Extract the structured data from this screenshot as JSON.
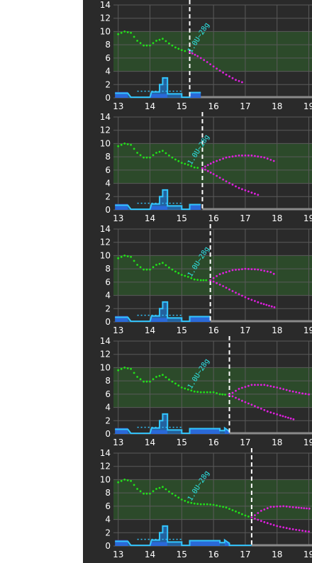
{
  "colors": {
    "background": "#2a2a2a",
    "target_band": "#2c4a2a",
    "grid": "#5a5a5a",
    "bg_points": "#22e01a",
    "prediction": "#e020e0",
    "now_line": "#ffffff",
    "iob_fill": "#1e90ff",
    "iob_outline": "#33c6ff",
    "basal_bar": "#3a3aa8",
    "carb_label": "#2ee8e8",
    "baseline": "#8a8a8a"
  },
  "chart_data": [
    {
      "type": "scatter",
      "title": "",
      "xlabel": "",
      "ylabel": "",
      "xlim": [
        12.85,
        19.1
      ],
      "ylim": [
        0,
        14
      ],
      "x_ticks": [
        "13",
        "14",
        "15",
        "16",
        "17",
        "18",
        "19"
      ],
      "y_ticks": [
        "0",
        "2",
        "4",
        "6",
        "8",
        "10",
        "12",
        "14"
      ],
      "target_range": [
        4,
        10
      ],
      "now": 15.25,
      "annotation": {
        "text": "1.0U~28g",
        "x": 15.3,
        "y": 6.7
      },
      "bg": [
        [
          13.0,
          9.6
        ],
        [
          13.2,
          10.0
        ],
        [
          13.4,
          9.8
        ],
        [
          13.6,
          8.6
        ],
        [
          13.8,
          7.9
        ],
        [
          14.0,
          7.9
        ],
        [
          14.2,
          8.6
        ],
        [
          14.4,
          8.9
        ],
        [
          14.6,
          8.2
        ],
        [
          14.8,
          7.6
        ],
        [
          15.0,
          7.2
        ],
        [
          15.2,
          6.9
        ]
      ],
      "predictions": [
        [
          [
            15.25,
            6.9
          ],
          [
            15.5,
            6.3
          ],
          [
            15.8,
            5.4
          ],
          [
            16.1,
            4.4
          ],
          [
            16.4,
            3.5
          ],
          [
            16.7,
            2.7
          ],
          [
            17.0,
            2.2
          ]
        ]
      ],
      "iob": [
        [
          12.9,
          0.7
        ],
        [
          13.0,
          0.7
        ],
        [
          13.3,
          0.7
        ],
        [
          13.4,
          0.1
        ],
        [
          14.0,
          0.1
        ],
        [
          14.05,
          0.9
        ],
        [
          14.3,
          0.9
        ],
        [
          14.3,
          2.0
        ],
        [
          14.4,
          2.0
        ],
        [
          14.4,
          3.0
        ],
        [
          14.55,
          3.0
        ],
        [
          14.55,
          0.6
        ],
        [
          15.0,
          0.6
        ],
        [
          15.0,
          0.1
        ],
        [
          15.25,
          0.1
        ],
        [
          15.25,
          0.8
        ],
        [
          15.6,
          0.8
        ]
      ],
      "basal": [
        [
          12.9,
          13.3,
          0.9
        ],
        [
          14.0,
          14.55,
          0.6
        ],
        [
          15.25,
          15.6,
          0.8
        ]
      ],
      "baseline_end": 19.1
    },
    {
      "type": "scatter",
      "title": "",
      "xlabel": "",
      "ylabel": "",
      "xlim": [
        12.85,
        19.1
      ],
      "ylim": [
        0,
        14
      ],
      "x_ticks": [
        "13",
        "14",
        "15",
        "16",
        "17",
        "18",
        "19"
      ],
      "y_ticks": [
        "0",
        "2",
        "4",
        "6",
        "8",
        "10",
        "12",
        "14"
      ],
      "target_range": [
        4,
        10
      ],
      "now": 15.65,
      "annotation": {
        "text": "1.0U~28g",
        "x": 15.3,
        "y": 6.7
      },
      "bg": [
        [
          13.0,
          9.6
        ],
        [
          13.2,
          10.0
        ],
        [
          13.4,
          9.8
        ],
        [
          13.6,
          8.6
        ],
        [
          13.8,
          7.9
        ],
        [
          14.0,
          7.9
        ],
        [
          14.2,
          8.6
        ],
        [
          14.4,
          8.9
        ],
        [
          14.6,
          8.2
        ],
        [
          14.8,
          7.6
        ],
        [
          15.0,
          7.1
        ],
        [
          15.2,
          6.8
        ],
        [
          15.4,
          6.4
        ],
        [
          15.6,
          6.3
        ]
      ],
      "predictions": [
        [
          [
            15.65,
            6.3
          ],
          [
            16.0,
            7.2
          ],
          [
            16.4,
            7.9
          ],
          [
            16.8,
            8.2
          ],
          [
            17.2,
            8.2
          ],
          [
            17.6,
            7.9
          ],
          [
            18.0,
            7.2
          ]
        ],
        [
          [
            15.65,
            6.3
          ],
          [
            16.0,
            5.4
          ],
          [
            16.4,
            4.3
          ],
          [
            16.8,
            3.3
          ],
          [
            17.2,
            2.6
          ],
          [
            17.5,
            2.1
          ]
        ]
      ],
      "iob": [
        [
          12.9,
          0.7
        ],
        [
          13.0,
          0.7
        ],
        [
          13.3,
          0.7
        ],
        [
          13.4,
          0.1
        ],
        [
          14.0,
          0.1
        ],
        [
          14.05,
          0.9
        ],
        [
          14.3,
          0.9
        ],
        [
          14.3,
          2.0
        ],
        [
          14.4,
          2.0
        ],
        [
          14.4,
          3.0
        ],
        [
          14.55,
          3.0
        ],
        [
          14.55,
          0.6
        ],
        [
          15.0,
          0.6
        ],
        [
          15.0,
          0.1
        ],
        [
          15.25,
          0.1
        ],
        [
          15.25,
          0.8
        ],
        [
          15.6,
          0.8
        ]
      ],
      "basal": [
        [
          12.9,
          13.3,
          0.9
        ],
        [
          14.0,
          14.55,
          0.6
        ],
        [
          15.25,
          15.6,
          0.8
        ]
      ],
      "baseline_end": 19.1
    },
    {
      "type": "scatter",
      "title": "",
      "xlabel": "",
      "ylabel": "",
      "xlim": [
        12.85,
        19.1
      ],
      "ylim": [
        0,
        14
      ],
      "x_ticks": [
        "13",
        "14",
        "15",
        "16",
        "17",
        "18",
        "19"
      ],
      "y_ticks": [
        "0",
        "2",
        "4",
        "6",
        "8",
        "10",
        "12",
        "14"
      ],
      "target_range": [
        4,
        10
      ],
      "now": 15.9,
      "annotation": {
        "text": "1.0U~28g",
        "x": 15.3,
        "y": 6.7
      },
      "bg": [
        [
          13.0,
          9.6
        ],
        [
          13.2,
          10.0
        ],
        [
          13.4,
          9.8
        ],
        [
          13.6,
          8.6
        ],
        [
          13.8,
          7.9
        ],
        [
          14.0,
          7.9
        ],
        [
          14.2,
          8.6
        ],
        [
          14.4,
          8.9
        ],
        [
          14.6,
          8.2
        ],
        [
          14.8,
          7.6
        ],
        [
          15.0,
          7.1
        ],
        [
          15.2,
          6.8
        ],
        [
          15.4,
          6.4
        ],
        [
          15.6,
          6.3
        ],
        [
          15.85,
          6.3
        ]
      ],
      "predictions": [
        [
          [
            15.9,
            6.3
          ],
          [
            16.2,
            7.2
          ],
          [
            16.6,
            7.8
          ],
          [
            17.0,
            8.0
          ],
          [
            17.4,
            7.9
          ],
          [
            17.8,
            7.5
          ],
          [
            18.0,
            7.0
          ]
        ],
        [
          [
            15.9,
            6.3
          ],
          [
            16.3,
            5.4
          ],
          [
            16.7,
            4.4
          ],
          [
            17.1,
            3.5
          ],
          [
            17.5,
            2.8
          ],
          [
            18.0,
            2.1
          ]
        ]
      ],
      "iob": [
        [
          12.9,
          0.7
        ],
        [
          13.0,
          0.7
        ],
        [
          13.3,
          0.7
        ],
        [
          13.4,
          0.1
        ],
        [
          14.0,
          0.1
        ],
        [
          14.05,
          0.9
        ],
        [
          14.3,
          0.9
        ],
        [
          14.3,
          2.0
        ],
        [
          14.4,
          2.0
        ],
        [
          14.4,
          3.0
        ],
        [
          14.55,
          3.0
        ],
        [
          14.55,
          0.6
        ],
        [
          15.0,
          0.6
        ],
        [
          15.0,
          0.1
        ],
        [
          15.25,
          0.1
        ],
        [
          15.25,
          0.8
        ],
        [
          15.9,
          0.8
        ]
      ],
      "basal": [
        [
          12.9,
          13.3,
          0.9
        ],
        [
          14.0,
          14.55,
          0.6
        ],
        [
          15.25,
          15.9,
          0.8
        ]
      ],
      "baseline_end": 19.1
    },
    {
      "type": "scatter",
      "title": "",
      "xlabel": "",
      "ylabel": "",
      "xlim": [
        12.85,
        19.1
      ],
      "ylim": [
        0,
        14
      ],
      "x_ticks": [
        "13",
        "14",
        "15",
        "16",
        "17",
        "18",
        "19"
      ],
      "y_ticks": [
        "0",
        "2",
        "4",
        "6",
        "8",
        "10",
        "12",
        "14"
      ],
      "target_range": [
        4,
        10
      ],
      "now": 16.5,
      "annotation": {
        "text": "1.0U~28g",
        "x": 15.3,
        "y": 6.7
      },
      "bg": [
        [
          13.0,
          9.6
        ],
        [
          13.2,
          10.0
        ],
        [
          13.4,
          9.8
        ],
        [
          13.6,
          8.6
        ],
        [
          13.8,
          7.9
        ],
        [
          14.0,
          7.9
        ],
        [
          14.2,
          8.6
        ],
        [
          14.4,
          8.9
        ],
        [
          14.6,
          8.2
        ],
        [
          14.8,
          7.6
        ],
        [
          15.0,
          7.0
        ],
        [
          15.2,
          6.7
        ],
        [
          15.4,
          6.4
        ],
        [
          15.6,
          6.3
        ],
        [
          15.8,
          6.3
        ],
        [
          16.0,
          6.3
        ],
        [
          16.2,
          6.0
        ],
        [
          16.45,
          5.9
        ]
      ],
      "predictions": [
        [
          [
            16.5,
            5.9
          ],
          [
            16.8,
            6.8
          ],
          [
            17.2,
            7.4
          ],
          [
            17.6,
            7.4
          ],
          [
            18.0,
            7.0
          ],
          [
            18.4,
            6.5
          ],
          [
            18.8,
            6.1
          ],
          [
            19.1,
            5.9
          ]
        ],
        [
          [
            16.5,
            5.9
          ],
          [
            16.9,
            5.0
          ],
          [
            17.3,
            4.2
          ],
          [
            17.7,
            3.4
          ],
          [
            18.1,
            2.8
          ],
          [
            18.6,
            2.1
          ]
        ]
      ],
      "iob": [
        [
          12.9,
          0.7
        ],
        [
          13.0,
          0.7
        ],
        [
          13.3,
          0.7
        ],
        [
          13.4,
          0.1
        ],
        [
          14.0,
          0.1
        ],
        [
          14.05,
          0.9
        ],
        [
          14.3,
          0.9
        ],
        [
          14.3,
          2.0
        ],
        [
          14.4,
          2.0
        ],
        [
          14.4,
          3.0
        ],
        [
          14.55,
          3.0
        ],
        [
          14.55,
          0.6
        ],
        [
          15.0,
          0.6
        ],
        [
          15.0,
          0.1
        ],
        [
          15.25,
          0.1
        ],
        [
          15.25,
          0.8
        ],
        [
          16.2,
          0.8
        ],
        [
          16.2,
          0.5
        ],
        [
          16.35,
          0.5
        ],
        [
          16.35,
          0.9
        ],
        [
          16.5,
          0.4
        ]
      ],
      "basal": [
        [
          12.9,
          13.3,
          0.9
        ],
        [
          14.0,
          14.55,
          0.6
        ],
        [
          15.25,
          16.2,
          0.8
        ],
        [
          16.35,
          16.5,
          0.6
        ]
      ],
      "baseline_end": 19.1
    },
    {
      "type": "scatter",
      "title": "",
      "xlabel": "",
      "ylabel": "",
      "xlim": [
        12.85,
        19.1
      ],
      "ylim": [
        0,
        14
      ],
      "x_ticks": [
        "13",
        "14",
        "15",
        "16",
        "17",
        "18",
        "19"
      ],
      "y_ticks": [
        "0",
        "2",
        "4",
        "6",
        "8",
        "10",
        "12",
        "14"
      ],
      "target_range": [
        4,
        10
      ],
      "now": 17.2,
      "annotation": {
        "text": "1.0U~28g",
        "x": 15.3,
        "y": 6.7
      },
      "bg": [
        [
          13.0,
          9.6
        ],
        [
          13.2,
          10.0
        ],
        [
          13.4,
          9.8
        ],
        [
          13.6,
          8.6
        ],
        [
          13.8,
          7.9
        ],
        [
          14.0,
          7.9
        ],
        [
          14.2,
          8.6
        ],
        [
          14.4,
          8.9
        ],
        [
          14.6,
          8.2
        ],
        [
          14.8,
          7.6
        ],
        [
          15.0,
          7.0
        ],
        [
          15.2,
          6.6
        ],
        [
          15.4,
          6.4
        ],
        [
          15.6,
          6.3
        ],
        [
          15.8,
          6.3
        ],
        [
          16.0,
          6.2
        ],
        [
          16.2,
          6.0
        ],
        [
          16.4,
          5.8
        ],
        [
          16.6,
          5.4
        ],
        [
          16.8,
          5.0
        ],
        [
          17.0,
          4.6
        ],
        [
          17.2,
          4.3
        ]
      ],
      "predictions": [
        [
          [
            17.2,
            4.3
          ],
          [
            17.5,
            5.3
          ],
          [
            17.8,
            5.9
          ],
          [
            18.2,
            6.0
          ],
          [
            18.6,
            5.8
          ],
          [
            19.1,
            5.6
          ]
        ],
        [
          [
            17.2,
            4.3
          ],
          [
            17.6,
            3.6
          ],
          [
            18.0,
            3.0
          ],
          [
            18.4,
            2.6
          ],
          [
            18.8,
            2.3
          ],
          [
            19.1,
            2.1
          ]
        ]
      ],
      "iob": [
        [
          12.9,
          0.7
        ],
        [
          13.0,
          0.7
        ],
        [
          13.3,
          0.7
        ],
        [
          13.4,
          0.1
        ],
        [
          14.0,
          0.1
        ],
        [
          14.05,
          0.9
        ],
        [
          14.3,
          0.9
        ],
        [
          14.3,
          2.0
        ],
        [
          14.4,
          2.0
        ],
        [
          14.4,
          3.0
        ],
        [
          14.55,
          3.0
        ],
        [
          14.55,
          0.6
        ],
        [
          15.0,
          0.6
        ],
        [
          15.0,
          0.1
        ],
        [
          15.25,
          0.1
        ],
        [
          15.25,
          0.8
        ],
        [
          16.2,
          0.8
        ],
        [
          16.2,
          0.5
        ],
        [
          16.35,
          0.5
        ],
        [
          16.35,
          0.9
        ],
        [
          16.5,
          0.4
        ],
        [
          16.5,
          0.1
        ],
        [
          17.2,
          0.1
        ]
      ],
      "basal": [
        [
          12.9,
          13.3,
          0.9
        ],
        [
          14.0,
          14.55,
          0.6
        ],
        [
          15.25,
          16.2,
          0.8
        ],
        [
          16.35,
          16.5,
          0.6
        ]
      ],
      "baseline_end": 19.1
    }
  ]
}
